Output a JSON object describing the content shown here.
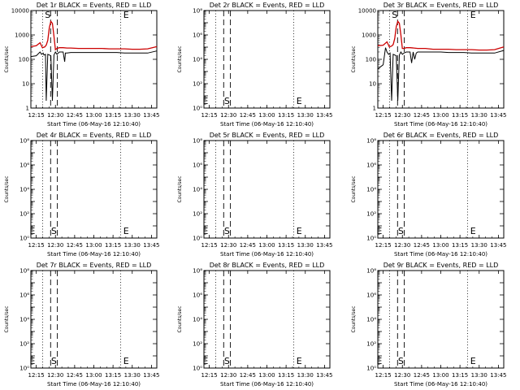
{
  "figure": {
    "background": "#ffffff"
  },
  "chart_data": [
    {
      "id": "det1",
      "type": "line",
      "title": "Det 1r BLACK = Events, RED = LLD",
      "xlabel": "Start Time (06-May-16 12:10:40)",
      "ylabel": "Counts/sec",
      "xticks": [
        "12:15",
        "12:30",
        "12:45",
        "13:00",
        "13:15",
        "13:30",
        "13:45"
      ],
      "xlim": [
        12.18,
        13.82
      ],
      "ylog": true,
      "ylim": [
        1,
        10000
      ],
      "yticks": [
        "1",
        "10",
        "100",
        "1000",
        "10000"
      ],
      "dotted_lines": [
        12.333,
        13.35
      ],
      "dashed_lines": [
        12.437,
        12.525
      ],
      "markers": [
        {
          "text": "S",
          "x": 12.4
        },
        {
          "text": "E",
          "x": 13.42
        }
      ],
      "series": [
        {
          "color": "#cc0000",
          "x": [
            12.18,
            12.25,
            12.3,
            12.33,
            12.36,
            12.38,
            12.4,
            12.42,
            12.44,
            12.46,
            12.48,
            12.5,
            12.52,
            12.55,
            12.6,
            12.65,
            12.7,
            12.8,
            12.9,
            13.0,
            13.1,
            13.2,
            13.3,
            13.4,
            13.5,
            13.6,
            13.7,
            13.82
          ],
          "y": [
            330,
            360,
            480,
            300,
            320,
            380,
            600,
            2000,
            3600,
            3000,
            900,
            250,
            280,
            300,
            300,
            290,
            290,
            280,
            280,
            280,
            280,
            270,
            270,
            270,
            260,
            260,
            270,
            330
          ]
        },
        {
          "color": "#000000",
          "x": [
            12.18,
            12.25,
            12.3,
            12.32,
            12.34,
            12.35,
            12.37,
            12.38,
            12.4,
            12.42,
            12.44,
            12.46,
            12.48,
            12.5,
            12.52,
            12.55,
            12.6,
            12.62,
            12.63,
            12.65,
            12.7,
            12.8,
            12.9,
            13.0,
            13.1,
            13.2,
            13.3,
            13.4,
            13.5,
            13.6,
            13.7,
            13.82
          ],
          "y": [
            130,
            140,
            200,
            160,
            180,
            150,
            160,
            2,
            160,
            150,
            140,
            2,
            150,
            200,
            160,
            200,
            200,
            80,
            180,
            180,
            190,
            190,
            190,
            190,
            190,
            190,
            190,
            180,
            180,
            180,
            180,
            220
          ]
        }
      ]
    },
    {
      "id": "det2",
      "type": "line",
      "title": "Det 2r BLACK = Events, RED = LLD",
      "xlabel": "Start Time (06-May-16 12:10:40)",
      "ylabel": "Counts/sec",
      "xticks": [
        "12:15",
        "12:30",
        "12:45",
        "13:00",
        "13:15",
        "13:30",
        "13:45"
      ],
      "xlim": [
        12.18,
        13.82
      ],
      "ylog": true,
      "ylim": [
        1,
        100000000
      ],
      "dotted_lines": [
        12.333,
        13.35
      ],
      "dashed_lines": [
        12.437,
        12.525
      ],
      "markers": [
        {
          "text": "E",
          "x": 12.2
        },
        {
          "text": "S",
          "x": 12.48
        },
        {
          "text": "E",
          "x": 13.42
        }
      ],
      "series": []
    },
    {
      "id": "det3",
      "type": "line",
      "title": "Det 3r BLACK = Events, RED = LLD",
      "xlabel": "Start Time (06-May-16 12:10:40)",
      "ylabel": "Counts/sec",
      "xticks": [
        "12:15",
        "12:30",
        "12:45",
        "13:00",
        "13:15",
        "13:30",
        "13:45"
      ],
      "xlim": [
        12.18,
        13.82
      ],
      "ylog": true,
      "ylim": [
        1,
        10000
      ],
      "yticks": [
        "1",
        "10",
        "100",
        "1000",
        "10000"
      ],
      "dotted_lines": [
        12.333,
        13.35
      ],
      "dashed_lines": [
        12.437,
        12.525
      ],
      "markers": [
        {
          "text": "S",
          "x": 12.4
        },
        {
          "text": "E",
          "x": 13.42
        }
      ],
      "series": [
        {
          "color": "#cc0000",
          "x": [
            12.18,
            12.25,
            12.3,
            12.33,
            12.36,
            12.38,
            12.4,
            12.42,
            12.44,
            12.46,
            12.48,
            12.5,
            12.52,
            12.55,
            12.6,
            12.65,
            12.7,
            12.8,
            12.9,
            13.0,
            13.1,
            13.2,
            13.3,
            13.4,
            13.5,
            13.6,
            13.7,
            13.82
          ],
          "y": [
            360,
            380,
            520,
            320,
            350,
            400,
            700,
            2200,
            3600,
            3000,
            1000,
            280,
            280,
            300,
            300,
            290,
            280,
            280,
            260,
            260,
            260,
            250,
            250,
            250,
            240,
            240,
            250,
            320
          ]
        },
        {
          "color": "#000000",
          "x": [
            12.18,
            12.25,
            12.28,
            12.3,
            12.32,
            12.34,
            12.36,
            12.38,
            12.4,
            12.42,
            12.44,
            12.46,
            12.48,
            12.5,
            12.52,
            12.55,
            12.6,
            12.62,
            12.64,
            12.66,
            12.68,
            12.7,
            12.8,
            12.9,
            13.0,
            13.1,
            13.2,
            13.3,
            13.4,
            13.5,
            13.6,
            13.7,
            13.82
          ],
          "y": [
            40,
            60,
            300,
            200,
            160,
            180,
            2,
            160,
            150,
            140,
            2,
            150,
            200,
            160,
            180,
            200,
            200,
            70,
            200,
            100,
            180,
            200,
            200,
            200,
            200,
            190,
            190,
            190,
            180,
            180,
            180,
            180,
            230
          ]
        }
      ]
    },
    {
      "id": "det4",
      "type": "line",
      "title": "Det 4r BLACK = Events, RED = LLD",
      "xlabel": "Start Time (06-May-16 12:10:40)",
      "ylabel": "Counts/sec",
      "xticks": [
        "12:15",
        "12:30",
        "12:45",
        "13:00",
        "13:15",
        "13:30",
        "13:45"
      ],
      "xlim": [
        12.18,
        13.82
      ],
      "ylog": true,
      "ylim": [
        1,
        100000000
      ],
      "dotted_lines": [
        12.333,
        13.35
      ],
      "dashed_lines": [
        12.437,
        12.525
      ],
      "markers": [
        {
          "text": "E",
          "x": 12.2
        },
        {
          "text": "S",
          "x": 12.48
        },
        {
          "text": "E",
          "x": 13.42
        }
      ],
      "series": []
    },
    {
      "id": "det5",
      "type": "line",
      "title": "Det 5r BLACK = Events, RED = LLD",
      "xlabel": "Start Time (06-May-16 12:10:40)",
      "ylabel": "Counts/sec",
      "xticks": [
        "12:15",
        "12:30",
        "12:45",
        "13:00",
        "13:15",
        "13:30",
        "13:45"
      ],
      "xlim": [
        12.18,
        13.82
      ],
      "ylog": true,
      "ylim": [
        1,
        100000000
      ],
      "dotted_lines": [
        12.333,
        13.35
      ],
      "dashed_lines": [
        12.437,
        12.525
      ],
      "markers": [
        {
          "text": "E",
          "x": 12.2
        },
        {
          "text": "S",
          "x": 12.48
        },
        {
          "text": "E",
          "x": 13.42
        }
      ],
      "series": []
    },
    {
      "id": "det6",
      "type": "line",
      "title": "Det 6r BLACK = Events, RED = LLD",
      "xlabel": "Start Time (06-May-16 12:10:40)",
      "ylabel": "Counts/sec",
      "xticks": [
        "12:15",
        "12:30",
        "12:45",
        "13:00",
        "13:15",
        "13:30",
        "13:45"
      ],
      "xlim": [
        12.18,
        13.82
      ],
      "ylog": true,
      "ylim": [
        1,
        100000000
      ],
      "dotted_lines": [
        12.333,
        13.35
      ],
      "dashed_lines": [
        12.437,
        12.525
      ],
      "markers": [
        {
          "text": "E",
          "x": 12.2
        },
        {
          "text": "S",
          "x": 12.48
        },
        {
          "text": "E",
          "x": 13.42
        }
      ],
      "series": []
    },
    {
      "id": "det7",
      "type": "line",
      "title": "Det 7r BLACK = Events, RED = LLD",
      "xlabel": "Start Time (06-May-16 12:10:40)",
      "ylabel": "Counts/sec",
      "xticks": [
        "12:15",
        "12:30",
        "12:45",
        "13:00",
        "13:15",
        "13:30",
        "13:45"
      ],
      "xlim": [
        12.18,
        13.82
      ],
      "ylog": true,
      "ylim": [
        1,
        100000000
      ],
      "dotted_lines": [
        12.333,
        13.35
      ],
      "dashed_lines": [
        12.437,
        12.525
      ],
      "markers": [
        {
          "text": "E",
          "x": 12.2
        },
        {
          "text": "S",
          "x": 12.48
        },
        {
          "text": "E",
          "x": 13.42
        }
      ],
      "series": []
    },
    {
      "id": "det8",
      "type": "line",
      "title": "Det 8r BLACK = Events, RED = LLD",
      "xlabel": "Start Time (06-May-16 12:10:40)",
      "ylabel": "Counts/sec",
      "xticks": [
        "12:15",
        "12:30",
        "12:45",
        "13:00",
        "13:15",
        "13:30",
        "13:45"
      ],
      "xlim": [
        12.18,
        13.82
      ],
      "ylog": true,
      "ylim": [
        1,
        100000000
      ],
      "dotted_lines": [
        12.333,
        13.35
      ],
      "dashed_lines": [
        12.437,
        12.525
      ],
      "markers": [
        {
          "text": "E",
          "x": 12.2
        },
        {
          "text": "S",
          "x": 12.48
        },
        {
          "text": "E",
          "x": 13.42
        }
      ],
      "series": []
    },
    {
      "id": "det9",
      "type": "line",
      "title": "Det 9r BLACK = Events, RED = LLD",
      "xlabel": "Start Time (06-May-16 12:10:40)",
      "ylabel": "Counts/sec",
      "xticks": [
        "12:15",
        "12:30",
        "12:45",
        "13:00",
        "13:15",
        "13:30",
        "13:45"
      ],
      "xlim": [
        12.18,
        13.82
      ],
      "ylog": true,
      "ylim": [
        1,
        100000000
      ],
      "dotted_lines": [
        12.333,
        13.35
      ],
      "dashed_lines": [
        12.437,
        12.525
      ],
      "markers": [
        {
          "text": "E",
          "x": 12.2
        },
        {
          "text": "S",
          "x": 12.48
        },
        {
          "text": "E",
          "x": 13.42
        }
      ],
      "series": []
    }
  ]
}
